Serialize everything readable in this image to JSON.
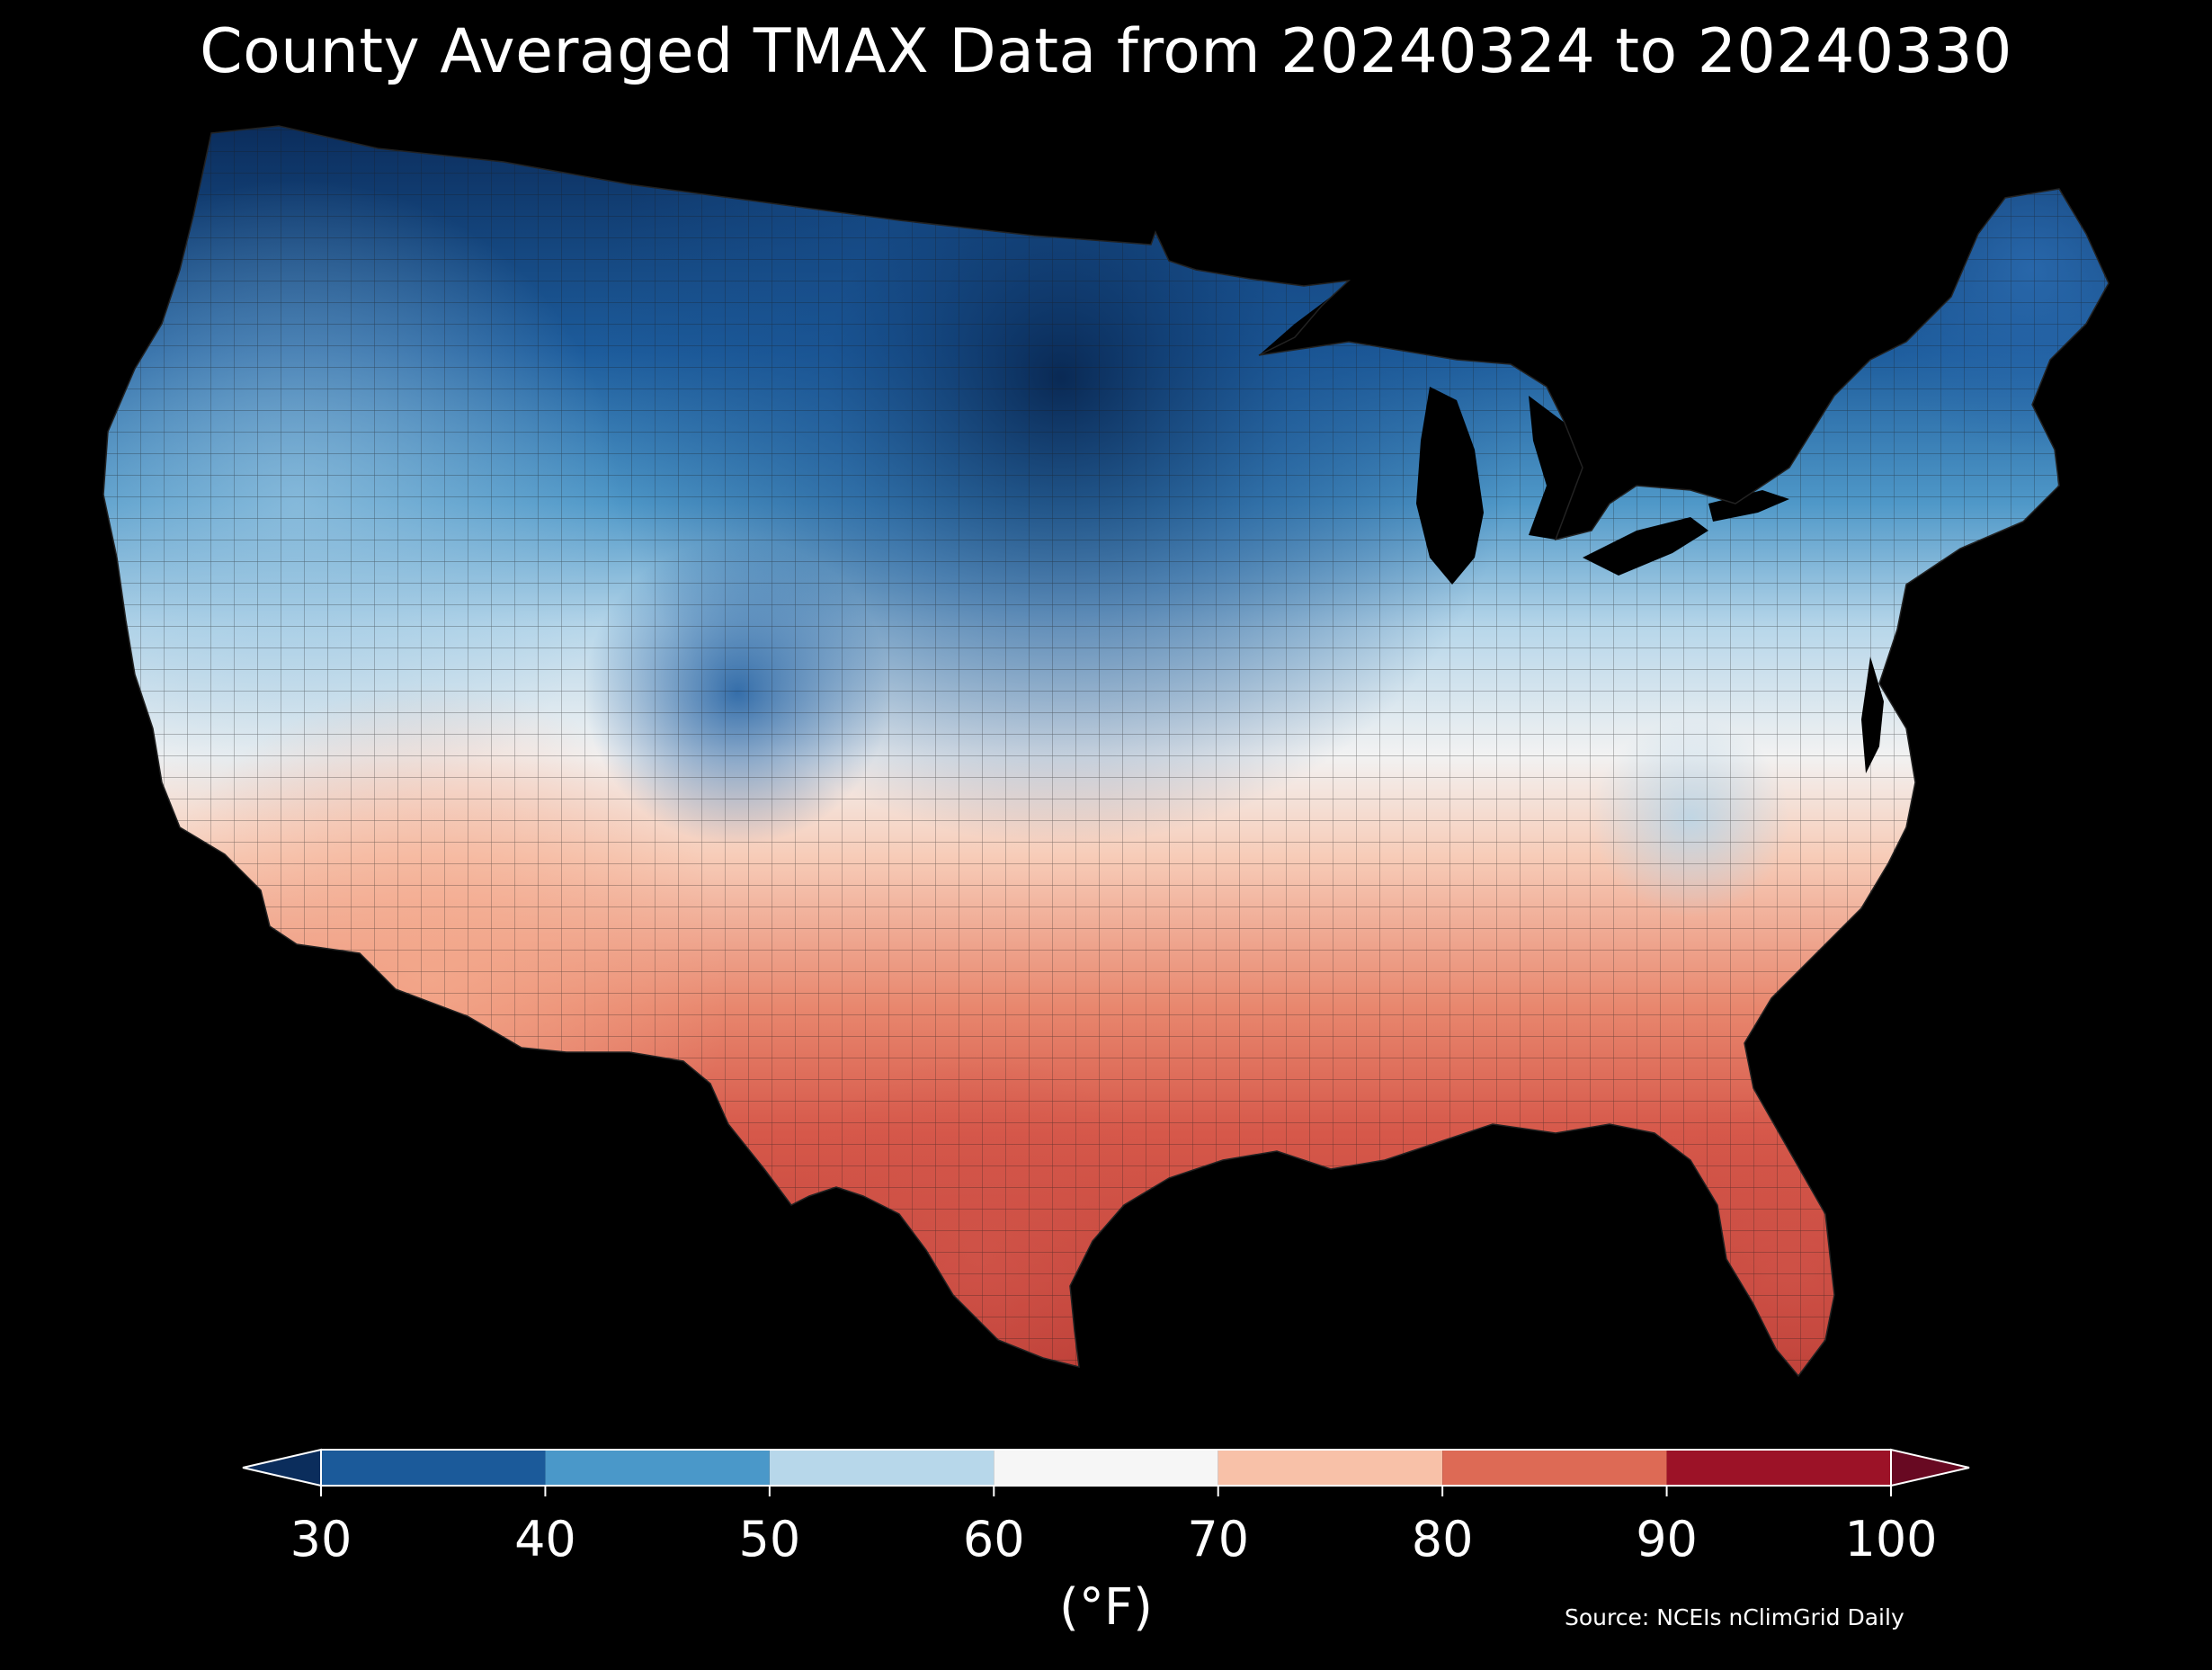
{
  "title": "County Averaged TMAX Data from 20240324 to 20240330",
  "colorbar": {
    "ticks": [
      "30",
      "40",
      "50",
      "60",
      "70",
      "80",
      "90",
      "100"
    ],
    "bins": [
      {
        "from": 30,
        "to": 40,
        "color": "#1b5a9a"
      },
      {
        "from": 40,
        "to": 50,
        "color": "#4a98c9"
      },
      {
        "from": 50,
        "to": 60,
        "color": "#b7d7ea"
      },
      {
        "from": 60,
        "to": 70,
        "color": "#f6f6f6"
      },
      {
        "from": 70,
        "to": 80,
        "color": "#f8c1a8"
      },
      {
        "from": 80,
        "to": 90,
        "color": "#dd6a55"
      },
      {
        "from": 90,
        "to": 100,
        "color": "#9c1227"
      }
    ],
    "under_color": "#0b2d5c",
    "over_color": "#680922",
    "unit": "(°F)"
  },
  "source": "Source: NCEIs nClimGrid Daily",
  "colors": {
    "background": "#000000",
    "coldest": "#0b2d5c",
    "cold": "#2b6fb0",
    "cool": "#6aaad4",
    "mild": "#c9e0ee",
    "neutral": "#f4f4f4",
    "warm": "#f6c6b0",
    "hot": "#e0745f",
    "hottest": "#c9443a"
  }
}
